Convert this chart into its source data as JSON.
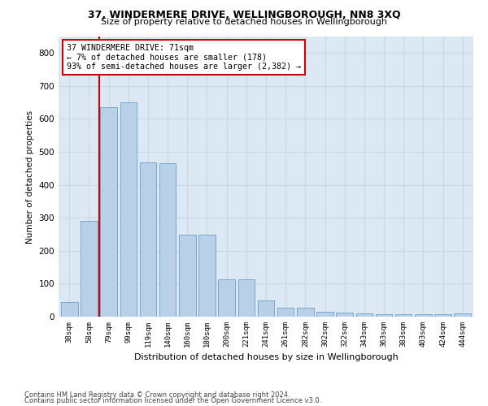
{
  "title1": "37, WINDERMERE DRIVE, WELLINGBOROUGH, NN8 3XQ",
  "title2": "Size of property relative to detached houses in Wellingborough",
  "xlabel": "Distribution of detached houses by size in Wellingborough",
  "ylabel": "Number of detached properties",
  "categories": [
    "38sqm",
    "58sqm",
    "79sqm",
    "99sqm",
    "119sqm",
    "140sqm",
    "160sqm",
    "180sqm",
    "200sqm",
    "221sqm",
    "241sqm",
    "261sqm",
    "282sqm",
    "302sqm",
    "322sqm",
    "343sqm",
    "363sqm",
    "383sqm",
    "403sqm",
    "424sqm",
    "444sqm"
  ],
  "values": [
    45,
    290,
    635,
    650,
    468,
    465,
    248,
    248,
    113,
    113,
    50,
    28,
    28,
    14,
    13,
    10,
    7,
    7,
    7,
    7,
    10
  ],
  "bar_color": "#b8d0e8",
  "bar_edge_color": "#6aa0c8",
  "vline_color": "#cc0000",
  "annotation_text": "37 WINDERMERE DRIVE: 71sqm\n← 7% of detached houses are smaller (178)\n93% of semi-detached houses are larger (2,382) →",
  "annotation_box_color": "#ffffff",
  "annotation_border_color": "#cc0000",
  "grid_color": "#c8d8e8",
  "background_color": "#dce8f4",
  "footer1": "Contains HM Land Registry data © Crown copyright and database right 2024.",
  "footer2": "Contains public sector information licensed under the Open Government Licence v3.0.",
  "ylim": [
    0,
    850
  ],
  "yticks": [
    0,
    100,
    200,
    300,
    400,
    500,
    600,
    700,
    800
  ]
}
